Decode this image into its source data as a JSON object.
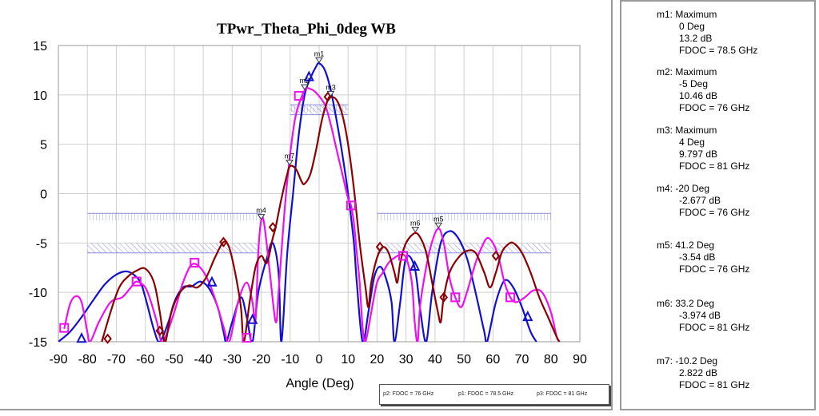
{
  "chart_data": {
    "type": "line",
    "title": "TPwr_Theta_Phi_0deg WB",
    "xlabel": "Angle (Deg)",
    "ylabel": "",
    "xlim": [
      -90,
      90
    ],
    "ylim": [
      -15,
      15
    ],
    "xticks": [
      "-90",
      "-80",
      "-70",
      "-60",
      "-50",
      "-40",
      "-30",
      "-20",
      "-10",
      "0",
      "10",
      "20",
      "30",
      "40",
      "50",
      "60",
      "70",
      "80",
      "90"
    ],
    "yticks": [
      "15",
      "10",
      "5",
      "0",
      "-5",
      "-10",
      "-15"
    ],
    "grid": true,
    "legend": [
      "p2: FDOC = 76 GHz",
      "p1: FDOC = 78.5 GHz",
      "p3: FDOC = 81 GHz"
    ],
    "series": [
      {
        "name": "p1: FDOC = 78.5 GHz",
        "color": "#1010d0",
        "marker": "triangle",
        "points": [
          [
            -90,
            -15
          ],
          [
            -86,
            -14
          ],
          [
            -82,
            -12.5
          ],
          [
            -78,
            -10.8
          ],
          [
            -74,
            -9.2
          ],
          [
            -70,
            -8.2
          ],
          [
            -66,
            -7.9
          ],
          [
            -62,
            -8.8
          ],
          [
            -60,
            -10.5
          ],
          [
            -57,
            -13.8
          ],
          [
            -55,
            -15
          ],
          [
            -52,
            -13
          ],
          [
            -50,
            -11
          ],
          [
            -47,
            -9.5
          ],
          [
            -44,
            -9.4
          ],
          [
            -41,
            -8.9
          ],
          [
            -38,
            -9.6
          ],
          [
            -35,
            -11.5
          ],
          [
            -33,
            -14
          ],
          [
            -32,
            -15
          ],
          [
            -30,
            -13
          ],
          [
            -27,
            -10.5
          ],
          [
            -25,
            -12.5
          ],
          [
            -23,
            -15
          ],
          [
            -21,
            -10
          ],
          [
            -18,
            -6.5
          ],
          [
            -16,
            -5
          ],
          [
            -14,
            -8
          ],
          [
            -13,
            -15
          ],
          [
            -11,
            -6
          ],
          [
            -9,
            0
          ],
          [
            -7,
            6
          ],
          [
            -5,
            10
          ],
          [
            -3,
            11.7
          ],
          [
            -1,
            12.9
          ],
          [
            0,
            13.2
          ],
          [
            2,
            12.5
          ],
          [
            4,
            10.5
          ],
          [
            6,
            7.5
          ],
          [
            8,
            4
          ],
          [
            10,
            0
          ],
          [
            12,
            -5
          ],
          [
            13,
            -9
          ],
          [
            15,
            -15
          ],
          [
            17,
            -12
          ],
          [
            19,
            -8.5
          ],
          [
            21,
            -7.4
          ],
          [
            23,
            -8.5
          ],
          [
            25,
            -11
          ],
          [
            26,
            -15
          ],
          [
            28,
            -11
          ],
          [
            30,
            -6.5
          ],
          [
            33,
            -7.5
          ],
          [
            35,
            -12
          ],
          [
            37,
            -15
          ],
          [
            39,
            -10
          ],
          [
            42,
            -5
          ],
          [
            45,
            -3.8
          ],
          [
            48,
            -4.5
          ],
          [
            51,
            -6.5
          ],
          [
            54,
            -10
          ],
          [
            57,
            -14
          ],
          [
            58,
            -15
          ],
          [
            61,
            -11
          ],
          [
            64,
            -8.8
          ],
          [
            67,
            -9.5
          ],
          [
            70,
            -11.5
          ],
          [
            73,
            -14
          ],
          [
            75,
            -15
          ]
        ],
        "markers": [
          [
            -82,
            -14.7
          ],
          [
            -37,
            -9
          ],
          [
            -23,
            -12.8
          ],
          [
            -3.5,
            11.8
          ],
          [
            33,
            -7.4
          ],
          [
            72,
            -12.5
          ]
        ]
      },
      {
        "name": "p2: FDOC = 76 GHz",
        "color": "#ee10ee",
        "marker": "square",
        "points": [
          [
            -88,
            -13.7
          ],
          [
            -86,
            -11.2
          ],
          [
            -84,
            -10.4
          ],
          [
            -82,
            -11
          ],
          [
            -80,
            -14
          ],
          [
            -79,
            -15
          ],
          [
            -76,
            -13
          ],
          [
            -72,
            -11
          ],
          [
            -68,
            -10.5
          ],
          [
            -65,
            -9.5
          ],
          [
            -63,
            -8.9
          ],
          [
            -60,
            -9.5
          ],
          [
            -58,
            -11
          ],
          [
            -56,
            -13
          ],
          [
            -54,
            -15
          ],
          [
            -50,
            -12
          ],
          [
            -47,
            -9
          ],
          [
            -44,
            -7.2
          ],
          [
            -41,
            -7.5
          ],
          [
            -38,
            -9
          ],
          [
            -35,
            -11.5
          ],
          [
            -33,
            -13.5
          ],
          [
            -31,
            -15
          ],
          [
            -28,
            -11
          ],
          [
            -25,
            -9
          ],
          [
            -23,
            -11
          ],
          [
            -22,
            -13
          ],
          [
            -21,
            -6
          ],
          [
            -20,
            -2.7
          ],
          [
            -19,
            -3
          ],
          [
            -17,
            -8
          ],
          [
            -15,
            -13
          ],
          [
            -14,
            -10
          ],
          [
            -12,
            -2
          ],
          [
            -10,
            4
          ],
          [
            -8,
            8
          ],
          [
            -5,
            10.46
          ],
          [
            -3,
            10.6
          ],
          [
            -1,
            10.2
          ],
          [
            2,
            9
          ],
          [
            4,
            7
          ],
          [
            6,
            4.5
          ],
          [
            8,
            2
          ],
          [
            10,
            -0.5
          ],
          [
            11,
            -1.2
          ],
          [
            12,
            -3
          ],
          [
            13,
            -6
          ],
          [
            14,
            -9
          ],
          [
            15,
            -13.5
          ],
          [
            16,
            -15
          ],
          [
            18,
            -12
          ],
          [
            20,
            -9
          ],
          [
            22,
            -8
          ],
          [
            24,
            -7
          ],
          [
            26,
            -6.5
          ],
          [
            28,
            -6.2
          ],
          [
            30,
            -6.5
          ],
          [
            32,
            -9
          ],
          [
            33,
            -13
          ],
          [
            34,
            -15
          ],
          [
            35,
            -11
          ],
          [
            38,
            -6
          ],
          [
            41,
            -3.54
          ],
          [
            43,
            -5
          ],
          [
            45,
            -8.5
          ],
          [
            47,
            -10.5
          ],
          [
            49,
            -11.5
          ],
          [
            51,
            -10
          ],
          [
            54,
            -7
          ],
          [
            56,
            -5.5
          ],
          [
            58,
            -4.5
          ],
          [
            60,
            -5
          ],
          [
            62,
            -6.5
          ],
          [
            64,
            -9
          ],
          [
            66,
            -10.5
          ],
          [
            68,
            -11
          ],
          [
            71,
            -10.5
          ],
          [
            74,
            -9.8
          ],
          [
            77,
            -10
          ],
          [
            80,
            -12
          ],
          [
            82,
            -14.5
          ],
          [
            83,
            -15
          ]
        ],
        "markers": [
          [
            -88,
            -13.6
          ],
          [
            -63,
            -8.9
          ],
          [
            -43,
            -7
          ],
          [
            -25,
            -14.6
          ],
          [
            -7,
            9.9
          ],
          [
            11,
            -1.2
          ],
          [
            29,
            -6.3
          ],
          [
            47,
            -10.5
          ],
          [
            66,
            -10.5
          ]
        ]
      },
      {
        "name": "p3: FDOC = 81 GHz",
        "color": "#8b0000",
        "marker": "diamond",
        "points": [
          [
            -75,
            -15
          ],
          [
            -72,
            -12
          ],
          [
            -69,
            -9.5
          ],
          [
            -66,
            -8.4
          ],
          [
            -63,
            -7.8
          ],
          [
            -60,
            -7.6
          ],
          [
            -57,
            -9
          ],
          [
            -55,
            -12
          ],
          [
            -54,
            -14
          ],
          [
            -53,
            -15
          ],
          [
            -51,
            -12
          ],
          [
            -48,
            -10
          ],
          [
            -45,
            -9.3
          ],
          [
            -42,
            -9.5
          ],
          [
            -39,
            -8.5
          ],
          [
            -36,
            -6.5
          ],
          [
            -33,
            -4.9
          ],
          [
            -31,
            -5.5
          ],
          [
            -29,
            -8
          ],
          [
            -27,
            -11.5
          ],
          [
            -26,
            -15
          ],
          [
            -24,
            -11
          ],
          [
            -22,
            -7.5
          ],
          [
            -20,
            -6.3
          ],
          [
            -18,
            -7
          ],
          [
            -16,
            -4.5
          ],
          [
            -15,
            -3.4
          ],
          [
            -13,
            -0.5
          ],
          [
            -11,
            2
          ],
          [
            -10,
            2.8
          ],
          [
            -8,
            2.5
          ],
          [
            -6,
            1.2
          ],
          [
            -5,
            1
          ],
          [
            -3,
            2
          ],
          [
            -1,
            4.5
          ],
          [
            1,
            7.5
          ],
          [
            3,
            9.5
          ],
          [
            4,
            9.797
          ],
          [
            6,
            9.5
          ],
          [
            8,
            8
          ],
          [
            10,
            5
          ],
          [
            12,
            0.5
          ],
          [
            14,
            -5
          ],
          [
            16,
            -9.5
          ],
          [
            17,
            -11.5
          ],
          [
            18,
            -9
          ],
          [
            20,
            -6.5
          ],
          [
            22,
            -5.4
          ],
          [
            24,
            -6
          ],
          [
            26,
            -8
          ],
          [
            27,
            -9
          ],
          [
            28,
            -7
          ],
          [
            30,
            -5
          ],
          [
            33,
            -4
          ],
          [
            35,
            -4.5
          ],
          [
            37,
            -6
          ],
          [
            39,
            -9
          ],
          [
            41,
            -12
          ],
          [
            42,
            -13
          ],
          [
            43,
            -10.5
          ],
          [
            45,
            -8
          ],
          [
            48,
            -6.5
          ],
          [
            51,
            -5.8
          ],
          [
            54,
            -6
          ],
          [
            57,
            -8
          ],
          [
            59,
            -9.5
          ],
          [
            61,
            -8
          ],
          [
            63,
            -6
          ],
          [
            65,
            -5.2
          ],
          [
            67,
            -5
          ],
          [
            70,
            -6
          ],
          [
            73,
            -8
          ],
          [
            76,
            -10.5
          ],
          [
            79,
            -12.5
          ],
          [
            82,
            -14.5
          ],
          [
            83,
            -15
          ]
        ],
        "markers": [
          [
            -73,
            -14.7
          ],
          [
            -55,
            -13.9
          ],
          [
            -33,
            -4.9
          ],
          [
            -16,
            -3.4
          ],
          [
            3,
            9.8
          ],
          [
            21,
            -5.4
          ],
          [
            43,
            -10.5
          ],
          [
            61,
            -6.3
          ]
        ]
      }
    ],
    "markers_on_plot": [
      {
        "label": "m1",
        "x": 0,
        "y": 13.2
      },
      {
        "label": "m2",
        "x": -5,
        "y": 10.46
      },
      {
        "label": "m3",
        "x": 4,
        "y": 9.797
      },
      {
        "label": "m4",
        "x": -20,
        "y": -2.677
      },
      {
        "label": "m5",
        "x": 41.2,
        "y": -3.54
      },
      {
        "label": "m6",
        "x": 33.2,
        "y": -3.974
      },
      {
        "label": "m7",
        "x": -10.2,
        "y": 2.822
      }
    ],
    "limit_regions": [
      {
        "x": [
          -80,
          -20
        ],
        "y": [
          -2,
          -6
        ]
      },
      {
        "x": [
          -10,
          10
        ],
        "y": [
          9,
          8
        ]
      },
      {
        "x": [
          20,
          80
        ],
        "y": [
          -2,
          -6
        ]
      }
    ]
  },
  "marker_table": [
    {
      "lines": [
        "m1: Maximum",
        "0 Deg",
        "13.2 dB",
        "FDOC = 78.5 GHz"
      ]
    },
    {
      "lines": [
        "m2: Maximum",
        "-5 Deg",
        "10.46 dB",
        "FDOC = 76 GHz"
      ]
    },
    {
      "lines": [
        "m3: Maximum",
        "4 Deg",
        "9.797 dB",
        "FDOC = 81 GHz"
      ]
    },
    {
      "lines": [
        "m4: -20 Deg",
        "-2.677 dB",
        "FDOC = 76 GHz"
      ]
    },
    {
      "lines": [
        "m5: 41.2 Deg",
        "-3.54 dB",
        "FDOC = 76 GHz"
      ]
    },
    {
      "lines": [
        "m6: 33.2 Deg",
        "-3.974 dB",
        "FDOC = 81 GHz"
      ]
    },
    {
      "lines": [
        "m7: -10.2 Deg",
        "2.822 dB",
        "FDOC = 81 GHz"
      ]
    }
  ]
}
